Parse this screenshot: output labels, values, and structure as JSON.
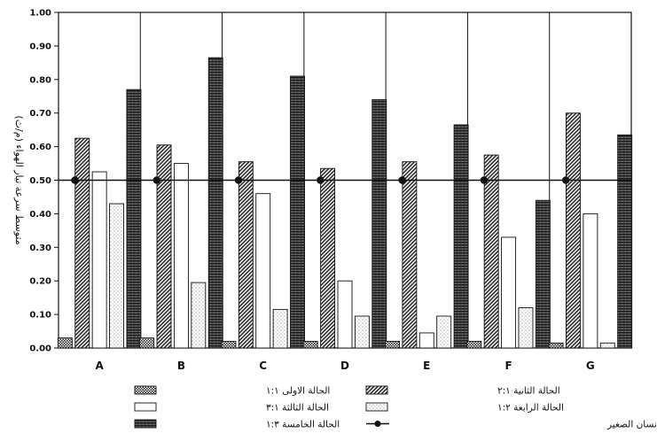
{
  "chart_data": {
    "type": "bar",
    "ylabel": "متوسط سرعة تيار الهواء (م/ث)",
    "ylim": [
      0,
      1.0
    ],
    "y_ticks": [
      "0.00",
      "0.10",
      "0.20",
      "0.30",
      "0.40",
      "0.50",
      "0.60",
      "0.70",
      "0.80",
      "0.90",
      "1.00"
    ],
    "grid": false,
    "legend_position": "bottom",
    "categories": [
      "A",
      "B",
      "C",
      "D",
      "E",
      "F",
      "G"
    ],
    "series": [
      {
        "name": "الحالة الاولى ١:١",
        "pattern": "checker",
        "values": [
          0.03,
          0.03,
          0.02,
          0.02,
          0.02,
          0.02,
          0.015
        ]
      },
      {
        "name": "الحالة الثانية ٢:١",
        "pattern": "diagonal",
        "values": [
          0.625,
          0.605,
          0.555,
          0.535,
          0.555,
          0.575,
          0.7
        ]
      },
      {
        "name": "الحالة الثالثة ٣:١",
        "pattern": "white",
        "values": [
          0.525,
          0.55,
          0.46,
          0.2,
          0.045,
          0.33,
          0.4
        ]
      },
      {
        "name": "الحالة الرابعة ١:٢",
        "pattern": "dotted",
        "values": [
          0.43,
          0.195,
          0.115,
          0.095,
          0.095,
          0.12,
          0.015
        ]
      },
      {
        "name": "الحالة الخامسة ١:٣",
        "pattern": "horizontal",
        "values": [
          0.77,
          0.865,
          0.81,
          0.74,
          0.665,
          0.44,
          0.635
        ]
      }
    ],
    "reference_line": {
      "name": "متوسط سرعة الهواء المريحة للانسان الصغير",
      "value": 0.5
    }
  },
  "colors": {
    "ink": "#111111",
    "fill_light": "#ffffff",
    "dark_hatch": "#3a3a3a"
  }
}
